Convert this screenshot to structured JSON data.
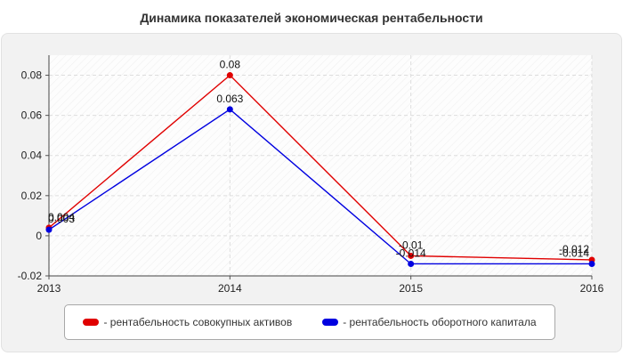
{
  "chart_data": {
    "type": "line",
    "title": "Динамика показателей экономическая рентабельности",
    "xlabel": "",
    "ylabel": "",
    "x": [
      "2013",
      "2014",
      "2015",
      "2016"
    ],
    "ylim": [
      -0.02,
      0.09
    ],
    "yticks": [
      "-0.02",
      "0",
      "0.02",
      "0.04",
      "0.06",
      "0.08"
    ],
    "grid": true,
    "legend_position": "bottom",
    "series": [
      {
        "name": "- рентабельность совокупных активов",
        "color": "#e00000",
        "values": [
          0.004,
          0.08,
          -0.01,
          -0.012
        ],
        "labels": [
          "0.004",
          "0.08",
          "-0.01",
          "-0.012"
        ]
      },
      {
        "name": "- рентабельность оборотного капитала",
        "color": "#0000e0",
        "values": [
          0.003,
          0.063,
          -0.014,
          -0.014
        ],
        "labels": [
          "0.003",
          "0.063",
          "-0.014",
          "-0.014"
        ]
      }
    ]
  }
}
